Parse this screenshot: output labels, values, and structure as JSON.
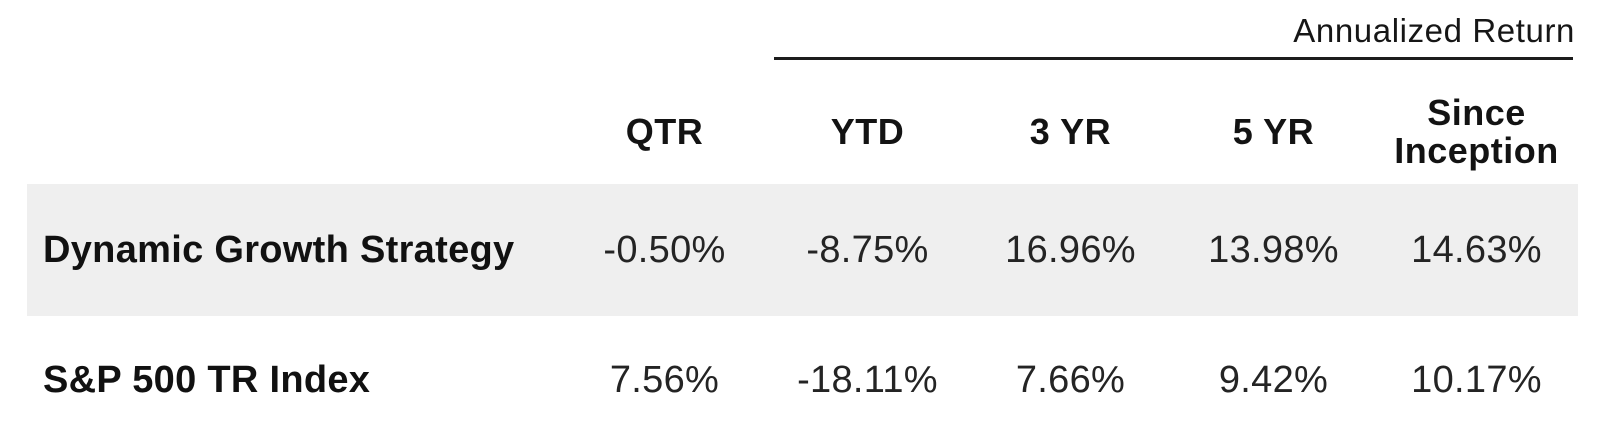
{
  "table": {
    "group_header": "Annualized Return",
    "columns": [
      "QTR",
      "YTD",
      "3 YR",
      "5 YR",
      "Since Inception"
    ],
    "rows": [
      {
        "label": "Dynamic Growth Strategy",
        "values": [
          "-0.50%",
          "-8.75%",
          "16.96%",
          "13.98%",
          "14.63%"
        ]
      },
      {
        "label": "S&P 500 TR Index",
        "values": [
          "7.56%",
          "-18.11%",
          "7.66%",
          "9.42%",
          "10.17%"
        ]
      }
    ],
    "colors": {
      "row_highlight": "#efefef",
      "text": "#1a1a1a",
      "rule": "#1c1c1c"
    }
  }
}
